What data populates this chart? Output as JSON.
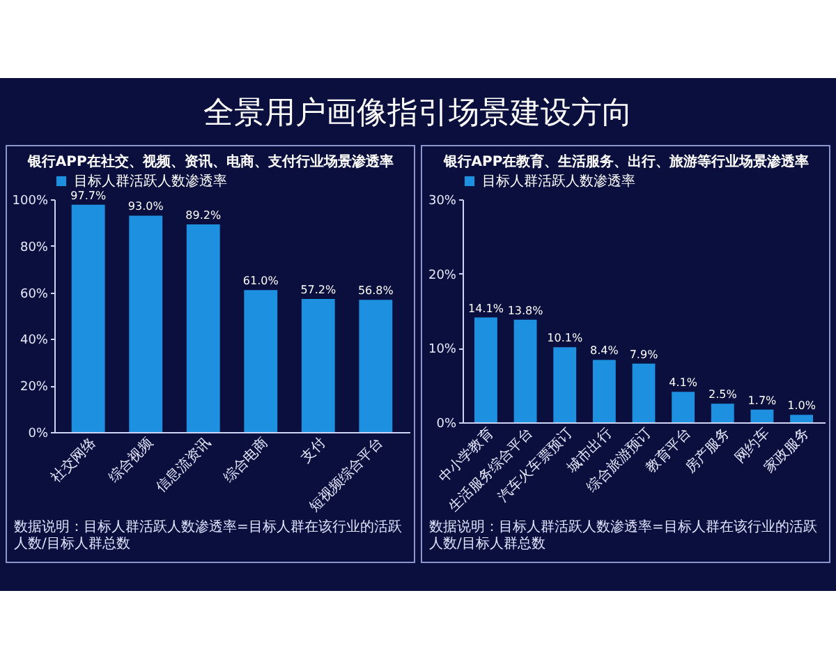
{
  "chart_data": [
    {
      "type": "other",
      "title": "全景用户画像指引场景建设方向"
    },
    {
      "type": "bar",
      "title": "银行APP在社交、视频、资讯、电商、支付行业场景渗透率",
      "categories": [
        "社交网络",
        "综合视频",
        "信息流资讯",
        "综合电商",
        "支付",
        "短视频综合平台"
      ],
      "series": [
        {
          "name": "目标人群活跃人数渗透率",
          "color": "#1e90e0",
          "values": [
            97.7,
            93.0,
            89.2,
            61.0,
            57.2,
            56.8
          ],
          "value_labels": [
            "97.7%",
            "93.0%",
            "89.2%",
            "61.0%",
            "57.2%",
            "56.8%"
          ]
        }
      ],
      "ylim": [
        0,
        100
      ],
      "yticks": [
        {
          "value": 0,
          "label": "0%"
        },
        {
          "value": 20,
          "label": "20%"
        },
        {
          "value": 40,
          "label": "40%"
        },
        {
          "value": 60,
          "label": "60%"
        },
        {
          "value": 80,
          "label": "80%"
        },
        {
          "value": 100,
          "label": "100%"
        }
      ],
      "legend": "top",
      "annotations": [
        "数据说明：目标人群活跃人数渗透率=目标人群在该行业的活跃人数/目标人群总数"
      ]
    },
    {
      "type": "bar",
      "title": "银行APP在教育、生活服务、出行、旅游等行业场景渗透率",
      "categories": [
        "中小学教育",
        "生活服务综合平台",
        "汽车火车票预订",
        "城市出行",
        "综合旅游预订",
        "教育平台",
        "房产服务",
        "网约车",
        "家政服务"
      ],
      "series": [
        {
          "name": "目标人群活跃人数渗透率",
          "color": "#1e90e0",
          "values": [
            14.1,
            13.8,
            10.1,
            8.4,
            7.9,
            4.1,
            2.5,
            1.7,
            1.0
          ],
          "value_labels": [
            "14.1%",
            "13.8%",
            "10.1%",
            "8.4%",
            "7.9%",
            "4.1%",
            "2.5%",
            "1.7%",
            "1.0%"
          ]
        }
      ],
      "ylim": [
        0,
        30
      ],
      "yticks": [
        {
          "value": 0,
          "label": "0%"
        },
        {
          "value": 10,
          "label": "10%"
        },
        {
          "value": 20,
          "label": "20%"
        },
        {
          "value": 30,
          "label": "30%"
        }
      ],
      "legend": "top",
      "annotations": [
        "数据说明：目标人群活跃人数渗透率=目标人群在该行业的活跃人数/目标人群总数"
      ]
    }
  ]
}
